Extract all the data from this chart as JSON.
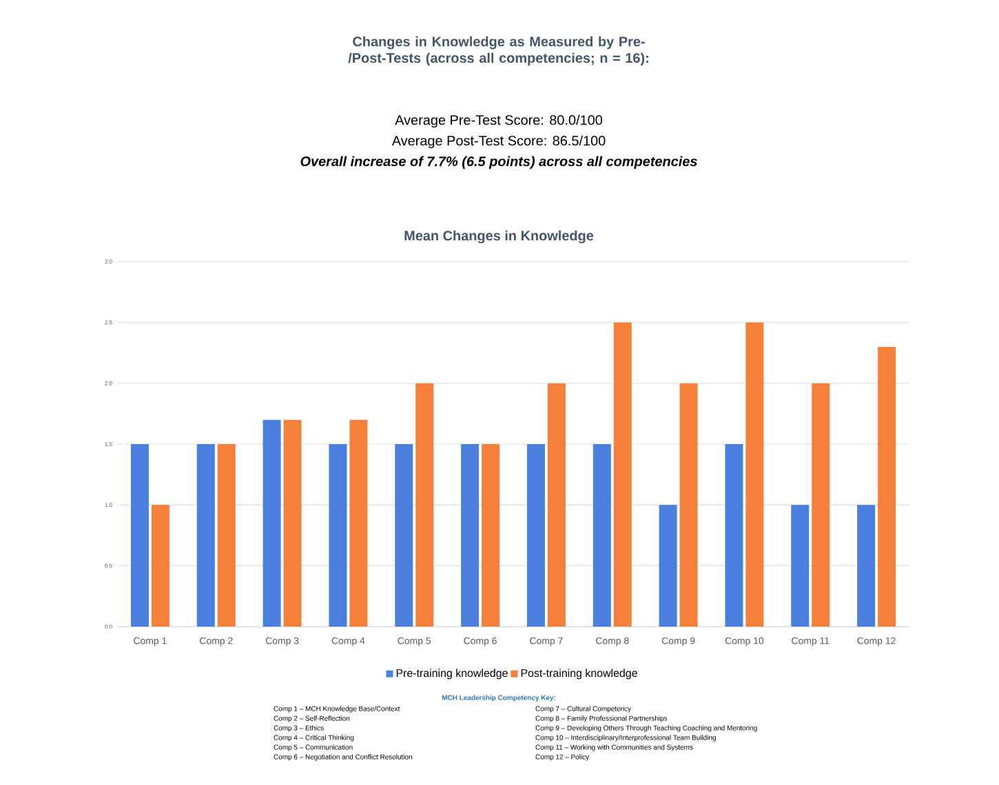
{
  "chart_data": {
    "type": "bar",
    "title": "Changes in Knowledge as Measured by Pre-/Post-Tests (across all competencies; n = 16):",
    "subtitle": "Mean Changes in Knowledge",
    "categories": [
      "Comp 1",
      "Comp 2",
      "Comp 3",
      "Comp 4",
      "Comp 5",
      "Comp 6",
      "Comp 7",
      "Comp 8",
      "Comp 9",
      "Comp 10",
      "Comp 11",
      "Comp 12"
    ],
    "series": [
      {
        "name": "Pre-training knowledge",
        "color": "#4a7fe0",
        "values": [
          1.5,
          1.5,
          1.7,
          1.5,
          1.5,
          1.5,
          1.5,
          1.5,
          1.0,
          1.5,
          1.0,
          1.0
        ]
      },
      {
        "name": "Post-training knowledge",
        "color": "#f4803a",
        "values": [
          1.0,
          1.5,
          1.7,
          1.7,
          2.0,
          1.5,
          2.0,
          2.5,
          2.0,
          2.5,
          2.0,
          2.3
        ]
      }
    ],
    "ylim": [
      0,
      3
    ],
    "yticks": [
      {
        "value": 0,
        "label": "0.0"
      },
      {
        "value": 0.5,
        "label": "0.5"
      },
      {
        "value": 1,
        "label": "1.0"
      },
      {
        "value": 1.5,
        "label": "1.5"
      },
      {
        "value": 2,
        "label": "2.0"
      },
      {
        "value": 2.5,
        "label": "2.5"
      },
      {
        "value": 3,
        "label": "3.0"
      }
    ],
    "grid": "y",
    "legend": "bottom",
    "annotations": [
      "Average Pre-Test Score: 80.0/100",
      "Average Post-Test Score: 86.5/100",
      "Overall increase of 7.7% (6.5 points) across all competencies",
      "MCH Leadership Competency Key:",
      "Comp 1 – MCH Knowledge Base/Context",
      "Comp 2 – Self-Reflection",
      "Comp 3 – Ethics",
      "Comp 4 – Critical Thinking",
      "Comp 5 – Communication",
      "Comp 6 – Negotiation and Conflict Resolution",
      "Comp 7 – Cultural Competency",
      "Comp 8 – Family Professional Partnerships",
      "Comp 9 – Developing Others Through Teaching Coaching and Mentoring",
      "Comp 10 – Interdisciplinary/Interprofessional Team Building",
      "Comp 11 – Working with Communities and Systems",
      "Comp 12 – Policy"
    ]
  }
}
